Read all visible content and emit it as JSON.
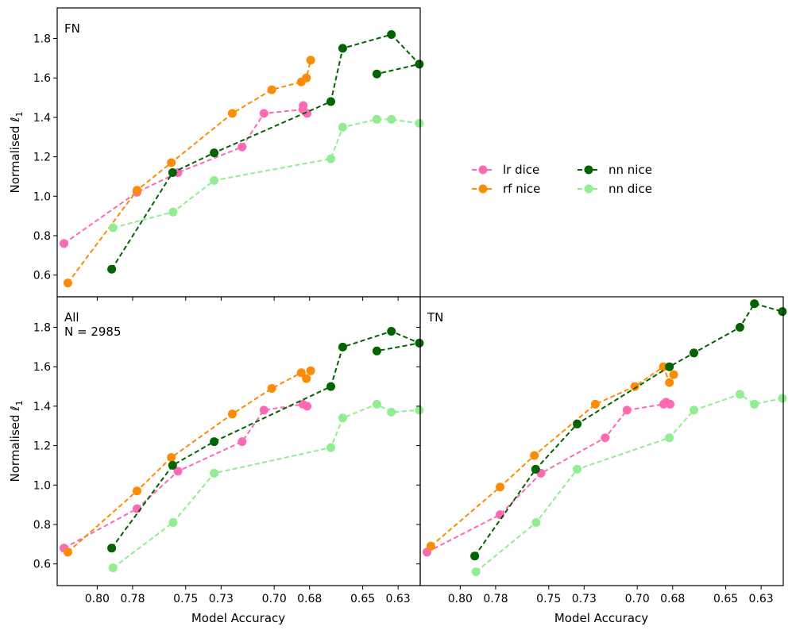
{
  "figure": {
    "ylabel_text": "Normalised ",
    "ylabel_symbol": "ℓ",
    "ylabel_subscript": "1",
    "xlabel": "Model Accuracy"
  },
  "legend": [
    {
      "name": "lr dice",
      "color": "#ff69b4"
    },
    {
      "name": "rf nice",
      "color": "#ff8c00"
    },
    {
      "name": "nn nice",
      "color": "#006400"
    },
    {
      "name": "nn dice",
      "color": "#90ee90"
    }
  ],
  "chart_data": [
    {
      "type": "line",
      "panel": "FN",
      "labels": [
        "FN"
      ],
      "xlabel": "",
      "ylabel": "Normalised ℓ1",
      "xlim": [
        0.8226,
        0.6175
      ],
      "ylim": [
        0.49,
        1.955
      ],
      "xticks": [
        0.8,
        0.78,
        0.75,
        0.73,
        0.7,
        0.68,
        0.65,
        0.63
      ],
      "xtick_labels": [
        "0.80",
        "0.78",
        "0.75",
        "0.73",
        "0.70",
        "0.68",
        "0.65",
        "0.63"
      ],
      "yticks": [
        0.6,
        0.8,
        1.0,
        1.2,
        1.4,
        1.6,
        1.8
      ],
      "ytick_labels": [
        "0.6",
        "0.8",
        "1.0",
        "1.2",
        "1.4",
        "1.6",
        "1.8"
      ],
      "series": [
        {
          "name": "lr dice",
          "x": [
            0.8188,
            0.7775,
            0.7544,
            0.7181,
            0.7058,
            0.6838,
            0.6836,
            0.6814
          ],
          "y": [
            0.76,
            1.02,
            1.12,
            1.25,
            1.42,
            1.44,
            1.46,
            1.42
          ]
        },
        {
          "name": "rf nice",
          "x": [
            0.8166,
            0.7775,
            0.7581,
            0.7237,
            0.7014,
            0.6847,
            0.6818,
            0.6794
          ],
          "y": [
            0.56,
            1.03,
            1.17,
            1.42,
            1.54,
            1.58,
            1.6,
            1.69
          ]
        },
        {
          "name": "nn nice",
          "x": [
            0.7918,
            0.7574,
            0.7339,
            0.668,
            0.6613,
            0.6338,
            0.618,
            0.642
          ],
          "y": [
            0.63,
            1.12,
            1.22,
            1.48,
            1.75,
            1.82,
            1.67,
            1.62
          ]
        },
        {
          "name": "nn dice",
          "x": [
            0.7911,
            0.7571,
            0.7339,
            0.668,
            0.6613,
            0.642,
            0.6338,
            0.618
          ],
          "y": [
            0.84,
            0.92,
            1.08,
            1.19,
            1.35,
            1.39,
            1.39,
            1.37
          ]
        }
      ]
    },
    {
      "type": "line",
      "panel": "All",
      "labels": [
        "All",
        "N = 2985"
      ],
      "xlabel": "Model Accuracy",
      "ylabel": "Normalised ℓ1",
      "xlim": [
        0.8226,
        0.6175
      ],
      "ylim": [
        0.49,
        1.955
      ],
      "xticks": [
        0.8,
        0.78,
        0.75,
        0.73,
        0.7,
        0.68,
        0.65,
        0.63
      ],
      "xtick_labels": [
        "0.80",
        "0.78",
        "0.75",
        "0.73",
        "0.70",
        "0.68",
        "0.65",
        "0.63"
      ],
      "yticks": [
        0.6,
        0.8,
        1.0,
        1.2,
        1.4,
        1.6,
        1.8
      ],
      "ytick_labels": [
        "0.6",
        "0.8",
        "1.0",
        "1.2",
        "1.4",
        "1.6",
        "1.8"
      ],
      "series": [
        {
          "name": "lr dice",
          "x": [
            0.8188,
            0.7775,
            0.7544,
            0.7181,
            0.7058,
            0.6838,
            0.6814
          ],
          "y": [
            0.68,
            0.88,
            1.07,
            1.22,
            1.38,
            1.41,
            1.4
          ]
        },
        {
          "name": "rf nice",
          "x": [
            0.8166,
            0.7775,
            0.7581,
            0.7237,
            0.7014,
            0.6847,
            0.6818,
            0.6794
          ],
          "y": [
            0.66,
            0.97,
            1.14,
            1.36,
            1.49,
            1.57,
            1.54,
            1.58
          ]
        },
        {
          "name": "nn nice",
          "x": [
            0.7918,
            0.7574,
            0.7339,
            0.668,
            0.6613,
            0.6338,
            0.618,
            0.642
          ],
          "y": [
            0.68,
            1.1,
            1.22,
            1.5,
            1.7,
            1.78,
            1.72,
            1.68
          ]
        },
        {
          "name": "nn dice",
          "x": [
            0.7911,
            0.7571,
            0.7339,
            0.668,
            0.6613,
            0.642,
            0.6338,
            0.618
          ],
          "y": [
            0.58,
            0.81,
            1.06,
            1.19,
            1.34,
            1.41,
            1.37,
            1.38
          ]
        }
      ]
    },
    {
      "type": "line",
      "panel": "TN",
      "labels": [
        "TN"
      ],
      "xlabel": "Model Accuracy",
      "ylabel": "",
      "xlim": [
        0.8226,
        0.6175
      ],
      "ylim": [
        0.49,
        1.955
      ],
      "xticks": [
        0.8,
        0.78,
        0.75,
        0.73,
        0.7,
        0.68,
        0.65,
        0.63
      ],
      "xtick_labels": [
        "0.80",
        "0.78",
        "0.75",
        "0.73",
        "0.70",
        "0.68",
        "0.65",
        "0.63"
      ],
      "yticks": [
        0.6,
        0.8,
        1.0,
        1.2,
        1.4,
        1.6,
        1.8
      ],
      "ytick_labels": [],
      "series": [
        {
          "name": "lr dice",
          "x": [
            0.8188,
            0.7775,
            0.7544,
            0.7181,
            0.7058,
            0.6851,
            0.6838,
            0.6814
          ],
          "y": [
            0.66,
            0.85,
            1.06,
            1.24,
            1.38,
            1.41,
            1.42,
            1.41
          ]
        },
        {
          "name": "rf nice",
          "x": [
            0.8166,
            0.7775,
            0.7581,
            0.7237,
            0.7014,
            0.6852,
            0.6818,
            0.6794
          ],
          "y": [
            0.69,
            0.99,
            1.15,
            1.41,
            1.5,
            1.6,
            1.52,
            1.56
          ]
        },
        {
          "name": "nn nice",
          "x": [
            0.7918,
            0.7574,
            0.7339,
            0.6818,
            0.668,
            0.642,
            0.6338,
            0.618
          ],
          "y": [
            0.64,
            1.08,
            1.31,
            1.6,
            1.67,
            1.8,
            1.92,
            1.88
          ]
        },
        {
          "name": "nn dice",
          "x": [
            0.7911,
            0.7571,
            0.7339,
            0.6818,
            0.668,
            0.642,
            0.6338,
            0.618
          ],
          "y": [
            0.56,
            0.81,
            1.08,
            1.24,
            1.38,
            1.46,
            1.41,
            1.44
          ]
        }
      ]
    }
  ]
}
